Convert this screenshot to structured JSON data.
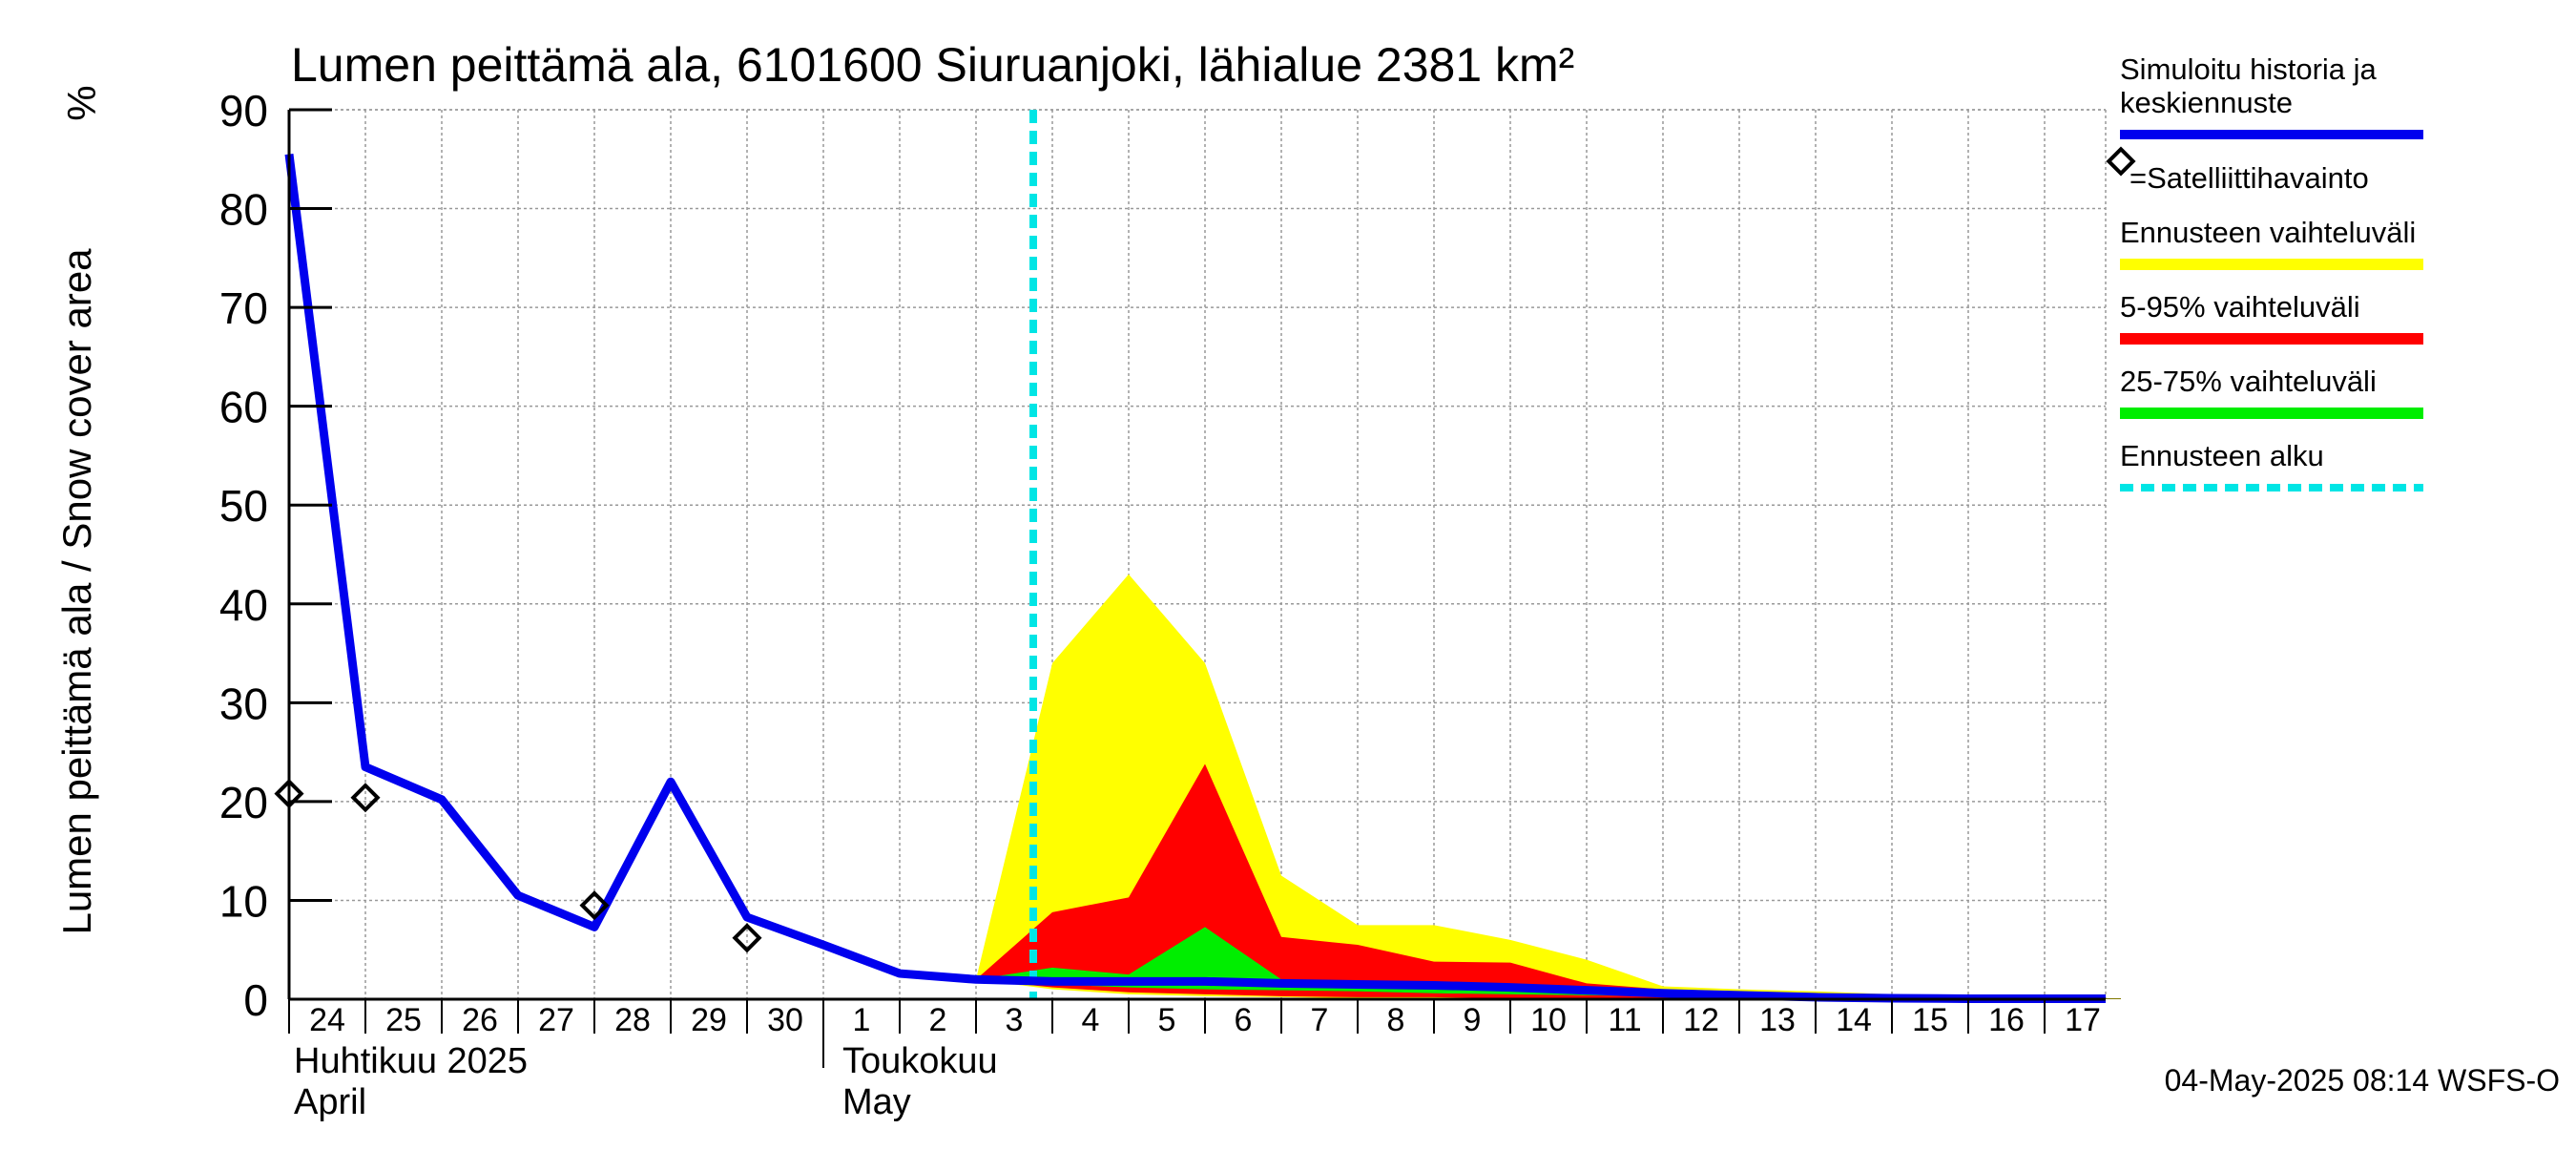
{
  "chart_data": {
    "type": "area",
    "title": "Lumen peittämä ala, 6101600 Siuruanjoki, lähialue 2381 km²",
    "ylabel": "Lumen peittämä ala / Snow cover area",
    "yunit": "%",
    "ylim": [
      0,
      90
    ],
    "yticks": [
      0,
      10,
      20,
      30,
      40,
      50,
      60,
      70,
      80,
      90
    ],
    "x_start": "2025-04-24",
    "x_end": "2025-05-17",
    "xtick_labels": [
      "24",
      "25",
      "26",
      "27",
      "28",
      "29",
      "30",
      "1",
      "2",
      "3",
      "4",
      "5",
      "6",
      "7",
      "8",
      "9",
      "10",
      "11",
      "12",
      "13",
      "14",
      "15",
      "16",
      "17"
    ],
    "month_labels": [
      {
        "fi": "Huhtikuu  2025",
        "en": "April",
        "date": "2025-04-24"
      },
      {
        "fi": "Toukokuu",
        "en": "May",
        "date": "2025-05-02"
      }
    ],
    "grid": true,
    "legend_position": "right",
    "legend": {
      "history": "Simuloitu historia ja keskiennuste",
      "satellite": "=Satelliittihavainto",
      "range": "Ennusteen vaihteluväli",
      "p5_95": "5-95% vaihteluväli",
      "p25_75": "25-75% vaihteluväli",
      "forecast_start": "Ennusteen alku"
    },
    "colors": {
      "history": "#0000ee",
      "range": "#ffff00",
      "p5_95": "#ff0000",
      "p25_75": "#00ee00",
      "forecast_start": "#00e5e5",
      "grid": "#999999"
    },
    "forecast_start_date": "2025-05-03 18:00",
    "history_series": {
      "x": [
        "2025-04-24",
        "2025-04-25",
        "2025-04-26",
        "2025-04-27",
        "2025-04-28",
        "2025-04-29",
        "2025-04-30",
        "2025-05-01",
        "2025-05-02",
        "2025-05-03",
        "2025-05-04",
        "2025-05-05",
        "2025-05-06",
        "2025-05-07",
        "2025-05-08",
        "2025-05-09",
        "2025-05-10",
        "2025-05-11",
        "2025-05-12",
        "2025-05-13",
        "2025-05-14",
        "2025-05-15",
        "2025-05-16",
        "2025-05-17",
        "2025-05-18"
      ],
      "y": [
        85.5,
        23.5,
        20.2,
        10.5,
        7.3,
        22.0,
        8.3,
        5.5,
        2.6,
        2.0,
        1.8,
        1.8,
        1.8,
        1.6,
        1.5,
        1.4,
        1.2,
        0.9,
        0.6,
        0.4,
        0.2,
        0.1,
        0.05,
        0.05,
        0.05
      ]
    },
    "satellite_points": {
      "x": [
        "2025-04-24",
        "2025-04-25",
        "2025-04-28",
        "2025-04-30"
      ],
      "y": [
        20.8,
        20.4,
        9.5,
        6.2
      ]
    },
    "forecast_x": [
      "2025-05-03",
      "2025-05-04",
      "2025-05-05",
      "2025-05-06",
      "2025-05-07",
      "2025-05-08",
      "2025-05-09",
      "2025-05-10",
      "2025-05-11",
      "2025-05-12",
      "2025-05-13",
      "2025-05-14",
      "2025-05-15",
      "2025-05-16",
      "2025-05-17",
      "2025-05-18"
    ],
    "range_band": {
      "upper": [
        2.0,
        34.0,
        43.0,
        34.0,
        12.5,
        7.5,
        7.5,
        6.0,
        4.0,
        1.3,
        1.0,
        0.8,
        0.5,
        0.2,
        0.1,
        0.1
      ],
      "lower": [
        2.0,
        1.0,
        0.5,
        0.3,
        0.2,
        0.1,
        0.1,
        0.05,
        0.05,
        0.0,
        0.0,
        0.0,
        0.0,
        0.0,
        0.0,
        0.0
      ]
    },
    "p5_95_band": {
      "upper": [
        2.0,
        8.8,
        10.3,
        23.8,
        6.3,
        5.5,
        3.8,
        3.7,
        1.6,
        1.0,
        0.8,
        0.6,
        0.4,
        0.2,
        0.1,
        0.1
      ],
      "lower": [
        2.0,
        1.2,
        0.7,
        0.5,
        0.3,
        0.2,
        0.2,
        0.1,
        0.05,
        0.0,
        0.0,
        0.0,
        0.0,
        0.0,
        0.0,
        0.0
      ]
    },
    "p25_75_band": {
      "upper": [
        2.0,
        3.2,
        2.5,
        7.3,
        2.0,
        1.8,
        1.5,
        1.3,
        1.0,
        0.6,
        0.4,
        0.2,
        0.1,
        0.05,
        0.05,
        0.05
      ],
      "lower": [
        2.0,
        1.5,
        1.2,
        1.0,
        0.9,
        0.8,
        0.6,
        0.5,
        0.4,
        0.3,
        0.1,
        0.05,
        0.0,
        0.0,
        0.0,
        0.0
      ]
    }
  },
  "footer_timestamp": "04-May-2025 08:14 WSFS-O"
}
